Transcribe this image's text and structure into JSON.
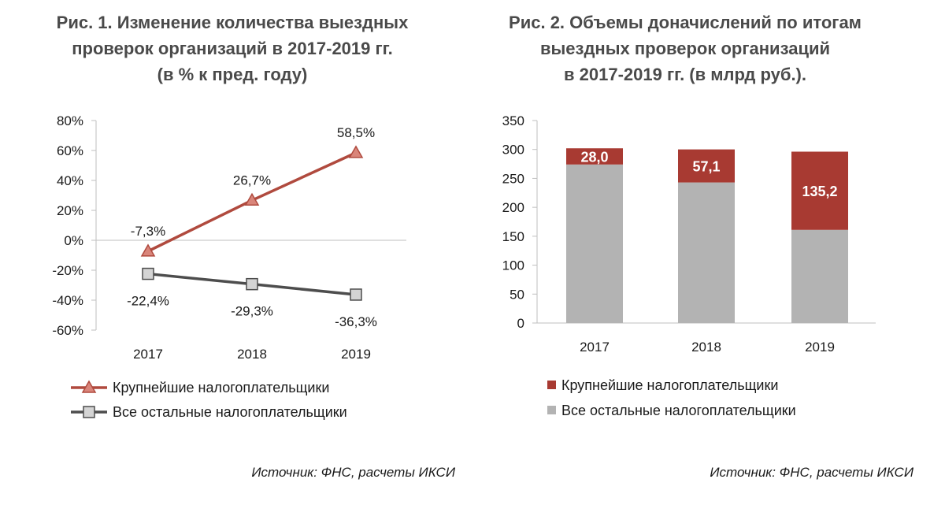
{
  "chart_data": [
    {
      "type": "line",
      "title_lines": [
        "Рис. 1. Изменение количества выездных",
        "проверок организаций в 2017-2019 гг.",
        "(в % к пред. году)"
      ],
      "categories": [
        "2017",
        "2018",
        "2019"
      ],
      "series": [
        {
          "name": "Крупнейшие налогоплательщики",
          "values": [
            -7.3,
            26.7,
            58.5
          ],
          "labels": [
            "-7,3%",
            "26,7%",
            "58,5%"
          ],
          "color": "#b04a3e",
          "marker": "triangle"
        },
        {
          "name": "Все остальные налогоплательщики",
          "values": [
            -22.4,
            -29.3,
            -36.3
          ],
          "labels": [
            "-22,4%",
            "-29,3%",
            "-36,3%"
          ],
          "color": "#4d4d4d",
          "marker": "square"
        }
      ],
      "ylim": [
        -60,
        80
      ],
      "yticks": [
        80,
        60,
        40,
        20,
        0,
        -20,
        -40,
        -60
      ],
      "ytick_labels": [
        "80%",
        "60%",
        "40%",
        "20%",
        "0%",
        "-20%",
        "-40%",
        "-60%"
      ],
      "grid": false,
      "legend_position": "bottom"
    },
    {
      "type": "bar",
      "stacked": true,
      "title_lines": [
        "Рис. 2. Объемы доначислений по итогам",
        "выездных проверок организаций",
        "в 2017-2019 гг. (в млрд руб.)."
      ],
      "categories": [
        "2017",
        "2018",
        "2019"
      ],
      "series": [
        {
          "name": "Все остальные налогоплательщики",
          "values": [
            274,
            243,
            161
          ],
          "color": "#b3b3b3"
        },
        {
          "name": "Крупнейшие налогоплательщики",
          "values": [
            28.0,
            57.1,
            135.2
          ],
          "labels": [
            "28,0",
            "57,1",
            "135,2"
          ],
          "color": "#a83a32"
        }
      ],
      "ylim": [
        0,
        350
      ],
      "yticks": [
        350,
        300,
        250,
        200,
        150,
        100,
        50,
        0
      ],
      "ytick_labels": [
        "350",
        "300",
        "250",
        "200",
        "150",
        "100",
        "50",
        "0"
      ],
      "grid": false,
      "legend_position": "bottom",
      "legend_order": [
        "Крупнейшие налогоплательщики",
        "Все остальные налогоплательщики"
      ]
    }
  ],
  "sources": [
    "Источник: ФНС, расчеты ИКСИ",
    "Источник: ФНС, расчеты ИКСИ"
  ]
}
